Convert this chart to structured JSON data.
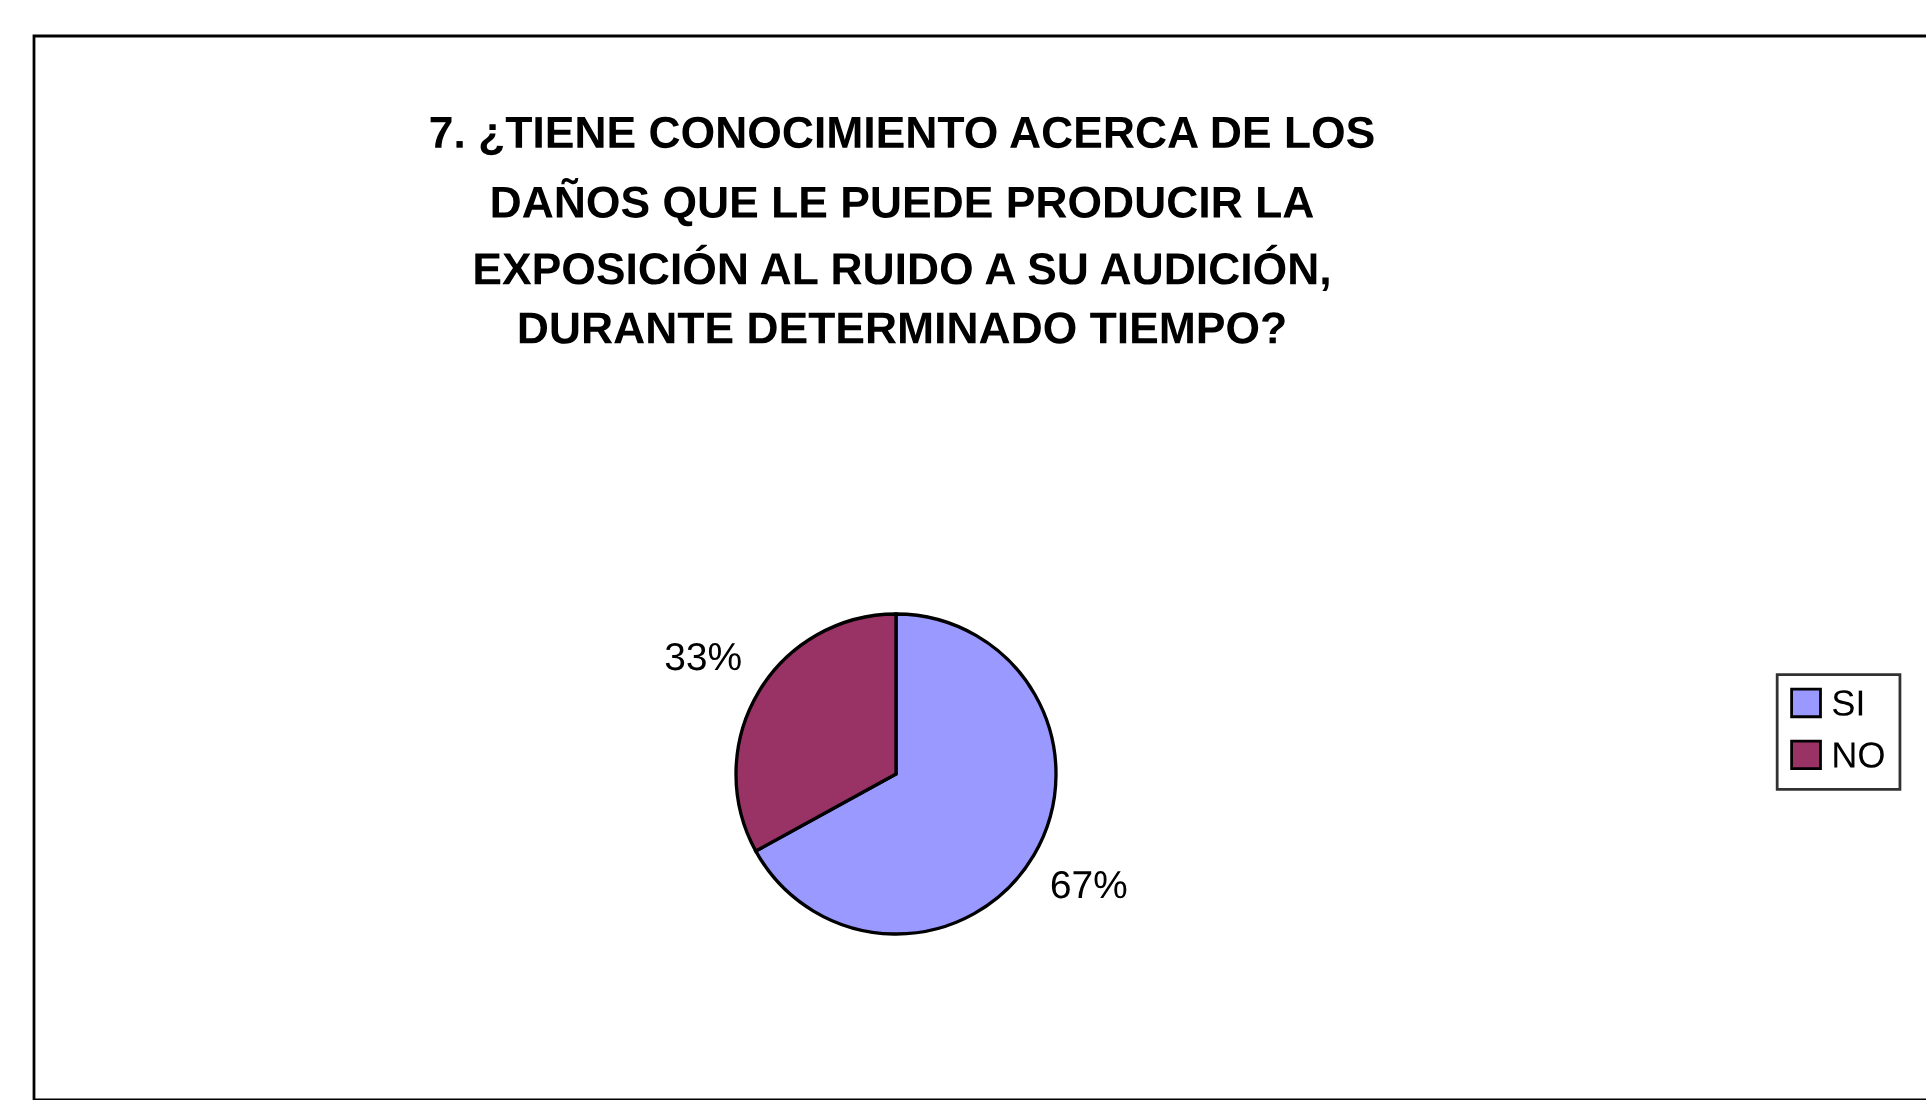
{
  "chart_data": {
    "type": "pie",
    "title": "7. ¿TIENE CONOCIMIENTO ACERCA DE LOS\nDAÑOS QUE LE PUEDE PRODUCIR LA\nEXPOSICIÓN AL RUIDO A SU AUDICIÓN,\nDURANTE DETERMINADO TIEMPO?",
    "categories": [
      "SI",
      "NO"
    ],
    "values": [
      67,
      33
    ],
    "colors": [
      "#9999ff",
      "#993366"
    ],
    "value_labels": [
      "67%",
      "33%"
    ],
    "legend": "right"
  }
}
